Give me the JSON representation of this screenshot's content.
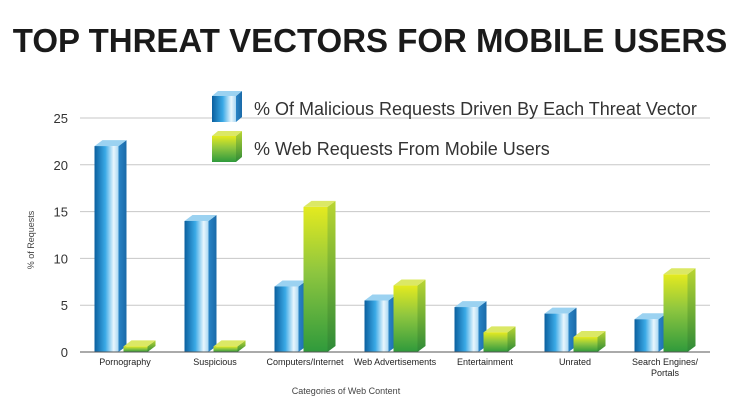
{
  "chart_data": {
    "type": "bar",
    "title": "TOP THREAT VECTORS FOR MOBILE USERS",
    "xlabel": "Categories of Web Content",
    "ylabel": "% of Requests",
    "ylim": [
      0,
      25
    ],
    "yticks": [
      "0",
      "5",
      "10",
      "15",
      "20",
      "25"
    ],
    "grid": true,
    "legend_position": "top-right",
    "categories": [
      [
        "Pornography"
      ],
      [
        "Suspicious"
      ],
      [
        "Computers/Internet"
      ],
      [
        "Web Advertisements"
      ],
      [
        "Entertainment"
      ],
      [
        "Unrated"
      ],
      [
        "Search Engines/",
        "Portals"
      ]
    ],
    "series": [
      {
        "name": "% Of Malicious Requests Driven By Each Threat Vector",
        "color": "#1e8fd0",
        "values": [
          22,
          14,
          7,
          5.5,
          4.8,
          4.1,
          3.5
        ]
      },
      {
        "name": "% Web Requests From Mobile Users",
        "color": "#8cc63f",
        "values": [
          0.6,
          0.6,
          15.5,
          7.1,
          2.1,
          1.6,
          8.3
        ]
      }
    ]
  }
}
